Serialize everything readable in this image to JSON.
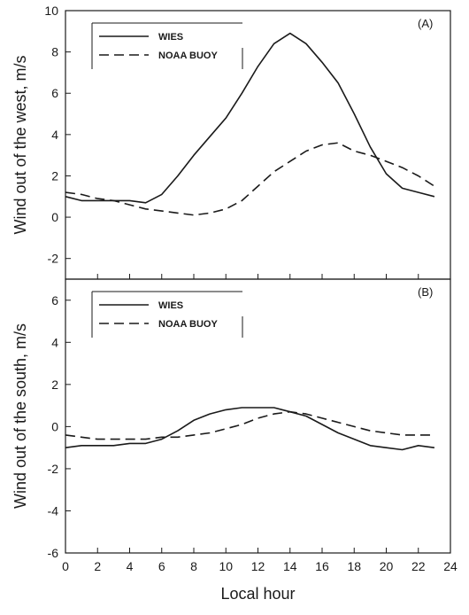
{
  "chart_data": [
    {
      "type": "line",
      "panel_label": "(A)",
      "ylabel": "Wind out of the west, m/s",
      "xlabel": "",
      "xlim": [
        0,
        24
      ],
      "ylim": [
        -3,
        10
      ],
      "x_ticks": [
        0,
        2,
        4,
        6,
        8,
        10,
        12,
        14,
        16,
        18,
        20,
        22,
        24
      ],
      "y_ticks": [
        -2,
        0,
        2,
        4,
        6,
        8,
        10
      ],
      "grid": false,
      "legend_position": "top-left",
      "series": [
        {
          "name": "WIES",
          "style": "solid",
          "x": [
            0,
            1,
            2,
            3,
            4,
            5,
            6,
            7,
            8,
            9,
            10,
            11,
            12,
            13,
            14,
            15,
            16,
            17,
            18,
            19,
            20,
            21,
            22,
            23
          ],
          "values": [
            1.0,
            0.8,
            0.8,
            0.8,
            0.8,
            0.7,
            1.1,
            2.0,
            3.0,
            3.9,
            4.8,
            6.0,
            7.3,
            8.4,
            8.9,
            8.4,
            7.5,
            6.5,
            5.0,
            3.4,
            2.1,
            1.4,
            1.2,
            1.0
          ],
          "color": "#1a1a1a"
        },
        {
          "name": "NOAA BUOY",
          "style": "dashed",
          "x": [
            0,
            1,
            2,
            3,
            4,
            5,
            6,
            7,
            8,
            9,
            10,
            11,
            12,
            13,
            14,
            15,
            16,
            17,
            18,
            19,
            20,
            21,
            22,
            23
          ],
          "values": [
            1.2,
            1.1,
            0.9,
            0.8,
            0.6,
            0.4,
            0.3,
            0.2,
            0.1,
            0.2,
            0.4,
            0.8,
            1.5,
            2.2,
            2.7,
            3.2,
            3.5,
            3.6,
            3.2,
            3.0,
            2.7,
            2.4,
            2.0,
            1.5
          ],
          "color": "#1a1a1a"
        }
      ]
    },
    {
      "type": "line",
      "panel_label": "(B)",
      "ylabel": "Wind out of the south, m/s",
      "xlabel": "Local hour",
      "xlim": [
        0,
        24
      ],
      "ylim": [
        -6,
        7
      ],
      "x_ticks": [
        0,
        2,
        4,
        6,
        8,
        10,
        12,
        14,
        16,
        18,
        20,
        22,
        24
      ],
      "y_ticks": [
        -6,
        -4,
        -2,
        0,
        2,
        4,
        6
      ],
      "grid": false,
      "legend_position": "top-left",
      "series": [
        {
          "name": "WIES",
          "style": "solid",
          "x": [
            0,
            1,
            2,
            3,
            4,
            5,
            6,
            7,
            8,
            9,
            10,
            11,
            12,
            13,
            14,
            15,
            16,
            17,
            18,
            19,
            20,
            21,
            22,
            23
          ],
          "values": [
            -1.0,
            -0.9,
            -0.9,
            -0.9,
            -0.8,
            -0.8,
            -0.6,
            -0.2,
            0.3,
            0.6,
            0.8,
            0.9,
            0.9,
            0.9,
            0.7,
            0.5,
            0.1,
            -0.3,
            -0.6,
            -0.9,
            -1.0,
            -1.1,
            -0.9,
            -1.0
          ],
          "color": "#1a1a1a"
        },
        {
          "name": "NOAA BUOY",
          "style": "dashed",
          "x": [
            0,
            1,
            2,
            3,
            4,
            5,
            6,
            7,
            8,
            9,
            10,
            11,
            12,
            13,
            14,
            15,
            16,
            17,
            18,
            19,
            20,
            21,
            22,
            23
          ],
          "values": [
            -0.4,
            -0.5,
            -0.6,
            -0.6,
            -0.6,
            -0.6,
            -0.5,
            -0.5,
            -0.4,
            -0.3,
            -0.1,
            0.1,
            0.4,
            0.6,
            0.7,
            0.6,
            0.4,
            0.2,
            0.0,
            -0.2,
            -0.3,
            -0.4,
            -0.4,
            -0.4
          ],
          "color": "#1a1a1a"
        }
      ]
    }
  ]
}
